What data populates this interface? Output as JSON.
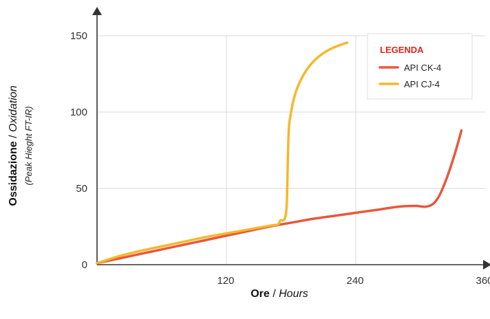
{
  "chart_data": {
    "type": "line",
    "xlabel": {
      "bold": "Ore",
      "sep": " / ",
      "italic": "Hours"
    },
    "ylabel": {
      "bold": "Ossidazione",
      "sep": " / ",
      "italic": "Oxidation",
      "sub": "(Peak Hieght FT-IR)"
    },
    "xlim": [
      0,
      360
    ],
    "ylim": [
      0,
      150
    ],
    "xticks": [
      120,
      240,
      360
    ],
    "yticks": [
      0,
      50,
      100,
      150
    ],
    "grid": true,
    "legend": {
      "title": "LEGENDA",
      "placement": "top-right"
    },
    "series": [
      {
        "name": "API CK-4",
        "color": "#e8573a",
        "x": [
          0,
          20,
          40,
          60,
          80,
          100,
          120,
          140,
          160,
          180,
          200,
          220,
          240,
          260,
          280,
          295,
          305,
          312,
          318,
          325,
          332,
          338
        ],
        "y": [
          1,
          4,
          7,
          10,
          13,
          16,
          19,
          22,
          25,
          27.5,
          30,
          32,
          34,
          36,
          38,
          38.5,
          38,
          40,
          46,
          58,
          73,
          88
        ]
      },
      {
        "name": "API CJ-4",
        "color": "#f6b72b",
        "x": [
          0,
          20,
          40,
          60,
          80,
          100,
          120,
          140,
          160,
          168,
          170,
          174,
          176,
          177,
          178,
          180,
          183,
          187,
          192,
          198,
          205,
          213,
          222,
          232
        ],
        "y": [
          1,
          5.5,
          9,
          12,
          15,
          18,
          20.5,
          23,
          25.5,
          26.5,
          29,
          30,
          40,
          70,
          90,
          100,
          110,
          118,
          125,
          131,
          136,
          140,
          143,
          145.5
        ]
      }
    ]
  }
}
